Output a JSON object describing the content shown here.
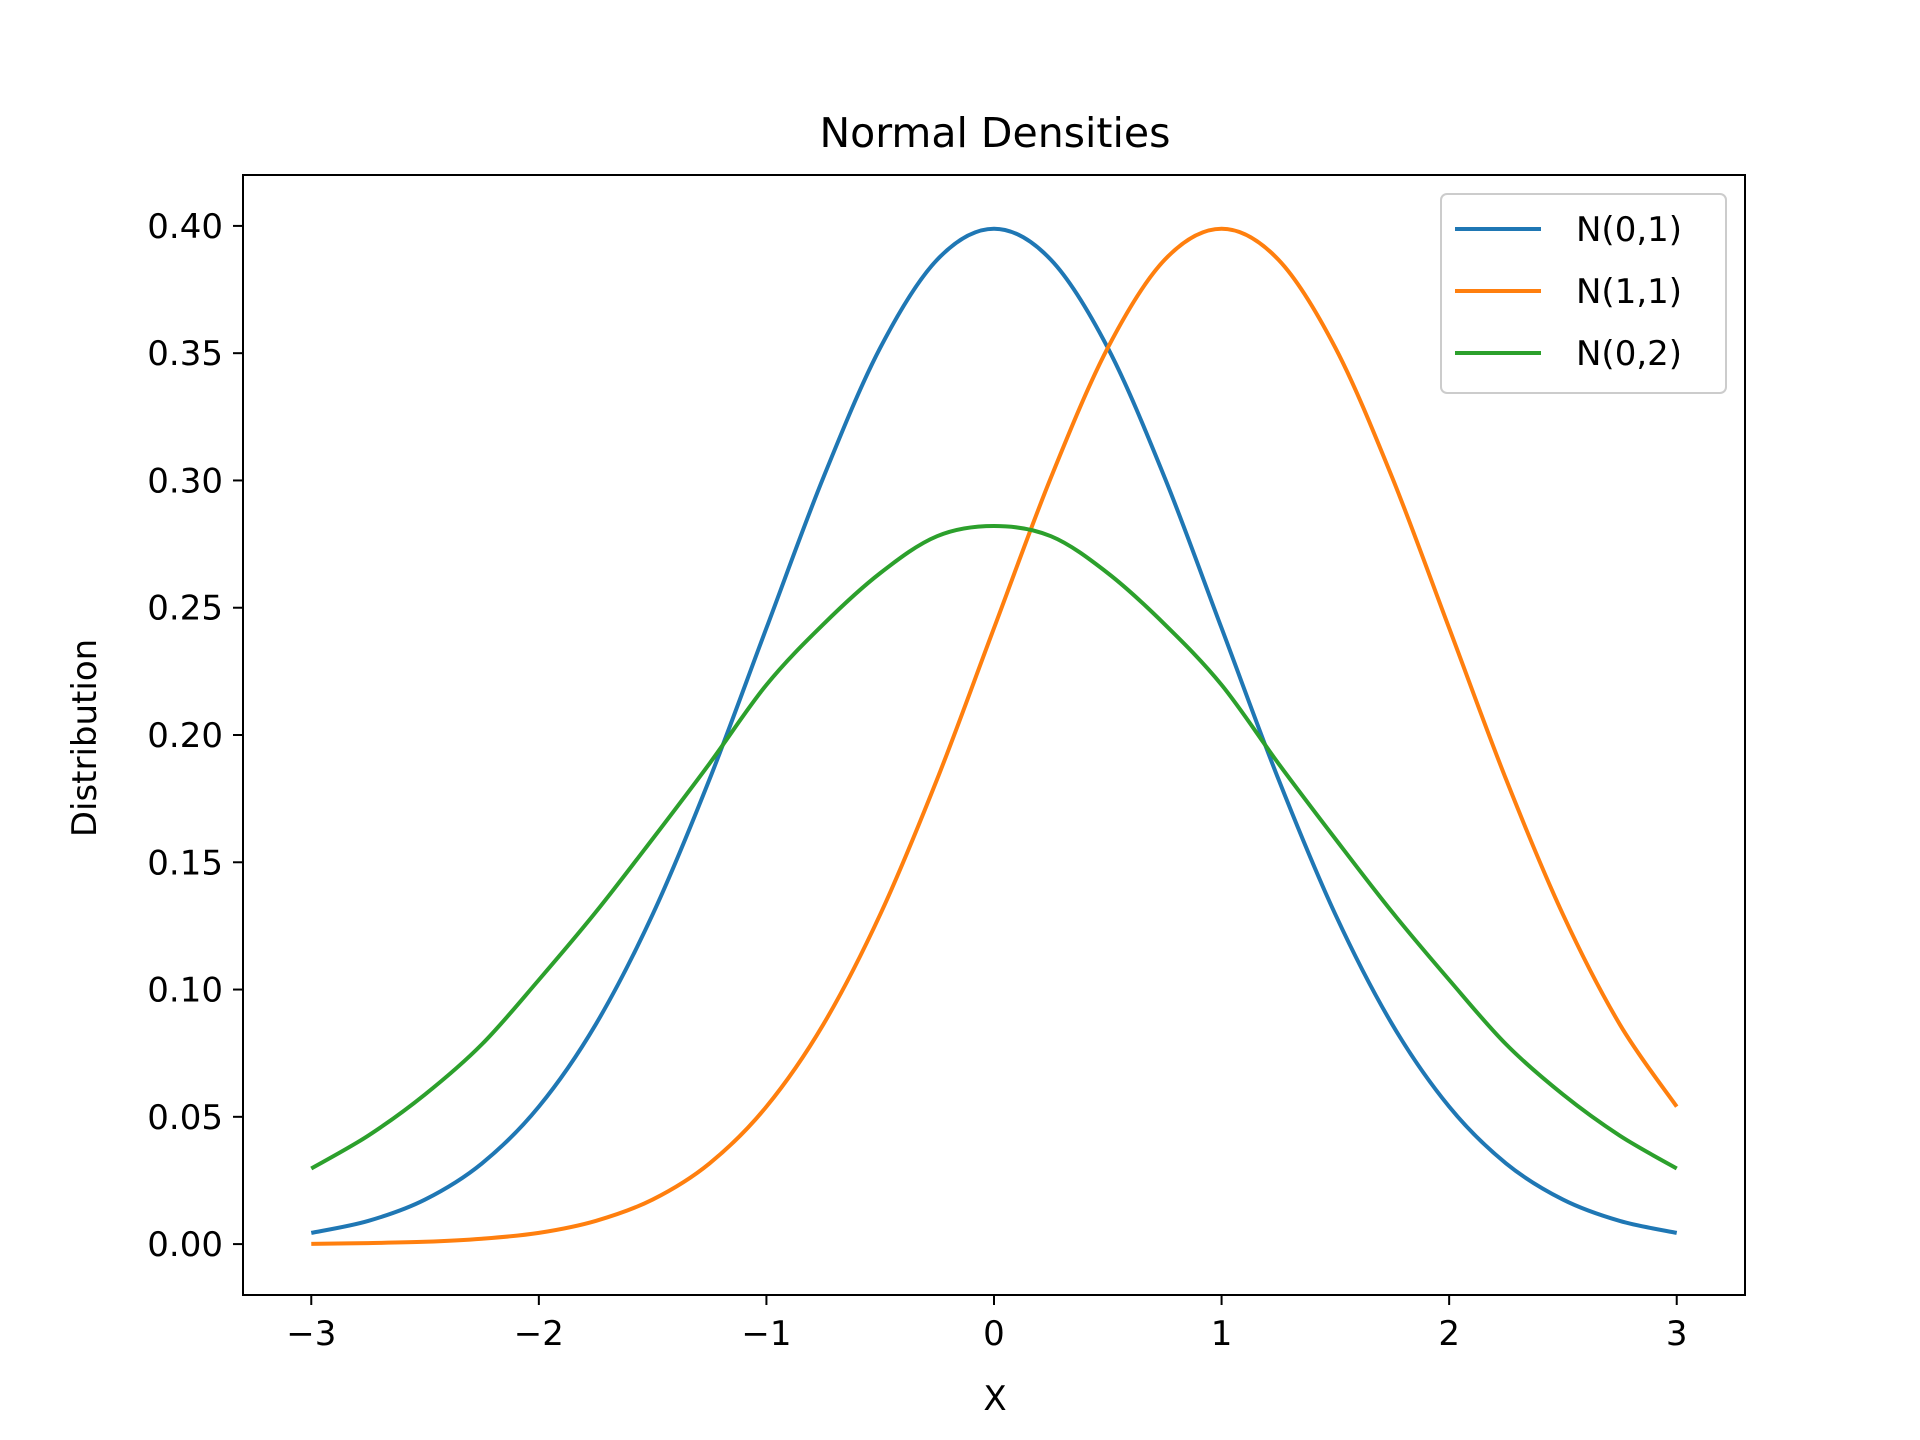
{
  "chart_data": {
    "type": "line",
    "title": "Normal Densities",
    "xlabel": "X",
    "ylabel": "Distribution",
    "xlim": [
      -3.3,
      3.3
    ],
    "ylim": [
      -0.02,
      0.42
    ],
    "xticks": [
      -3,
      -2,
      -1,
      0,
      1,
      2,
      3
    ],
    "xtick_labels": [
      "−3",
      "−2",
      "−1",
      "0",
      "1",
      "2",
      "3"
    ],
    "yticks": [
      0.0,
      0.05,
      0.1,
      0.15,
      0.2,
      0.25,
      0.3,
      0.35,
      0.4
    ],
    "ytick_labels": [
      "0.00",
      "0.05",
      "0.10",
      "0.15",
      "0.20",
      "0.25",
      "0.30",
      "0.35",
      "0.40"
    ],
    "grid": false,
    "legend_position": "top-right",
    "x": [
      -3.0,
      -2.75,
      -2.5,
      -2.25,
      -2.0,
      -1.75,
      -1.5,
      -1.25,
      -1.0,
      -0.75,
      -0.5,
      -0.25,
      0.0,
      0.25,
      0.5,
      0.75,
      1.0,
      1.25,
      1.5,
      1.75,
      2.0,
      2.25,
      2.5,
      2.75,
      3.0
    ],
    "series": [
      {
        "name": "N(0,1)",
        "color": "#1f77b4",
        "values": [
          0.0044,
          0.0091,
          0.0175,
          0.0317,
          0.054,
          0.0863,
          0.1295,
          0.1826,
          0.242,
          0.3011,
          0.3521,
          0.3867,
          0.3989,
          0.3867,
          0.3521,
          0.3011,
          0.242,
          0.1826,
          0.1295,
          0.0863,
          0.054,
          0.0317,
          0.0175,
          0.0091,
          0.0044
        ]
      },
      {
        "name": "N(1,1)",
        "color": "#ff7f0e",
        "values": [
          0.0001,
          0.0004,
          0.0009,
          0.0021,
          0.0044,
          0.0091,
          0.0175,
          0.0317,
          0.054,
          0.0863,
          0.1295,
          0.1826,
          0.242,
          0.3011,
          0.3521,
          0.3867,
          0.3989,
          0.3867,
          0.3521,
          0.3011,
          0.242,
          0.1826,
          0.1295,
          0.0863,
          0.054
        ]
      },
      {
        "name": "N(0,2)",
        "color": "#2ca02c",
        "values": [
          0.0297,
          0.0426,
          0.0588,
          0.0785,
          0.1038,
          0.1304,
          0.1592,
          0.1888,
          0.2197,
          0.2435,
          0.2636,
          0.2781,
          0.2821,
          0.2781,
          0.2636,
          0.2435,
          0.2197,
          0.1888,
          0.1592,
          0.1304,
          0.1038,
          0.0785,
          0.0588,
          0.0426,
          0.0297
        ]
      }
    ]
  }
}
